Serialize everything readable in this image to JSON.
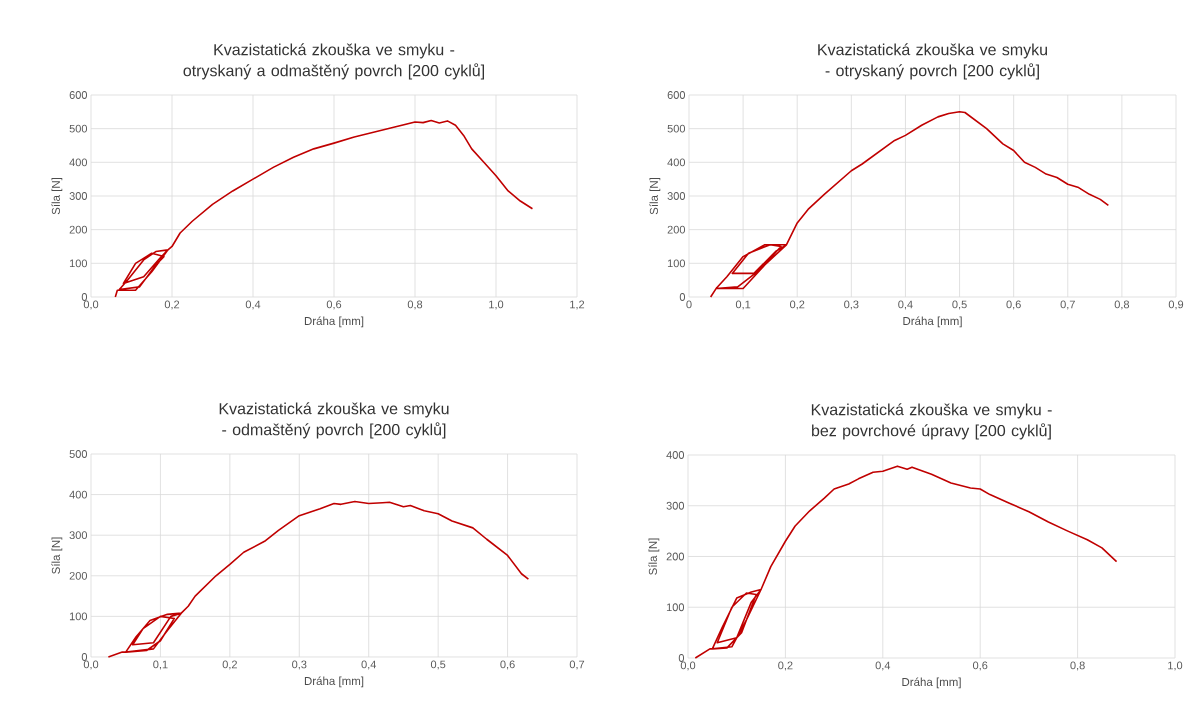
{
  "chart_data": [
    {
      "type": "line",
      "title": "Kvazistatická zkouška ve smyku - otryskaný a odmaštěný povrch [200 cyklů]",
      "xlabel": "Dráha [mm]",
      "ylabel": "Síla [N]",
      "xlim": [
        0,
        1.2
      ],
      "xticks": [
        {
          "value": 0,
          "label": "0,0"
        },
        {
          "value": 0.2,
          "label": "0,2"
        },
        {
          "value": 0.4,
          "label": "0,4"
        },
        {
          "value": 0.6,
          "label": "0,6"
        },
        {
          "value": 0.8,
          "label": "0,8"
        },
        {
          "value": 1.0,
          "label": "1,0"
        },
        {
          "value": 1.2,
          "label": "1,2"
        }
      ],
      "ylim": [
        0,
        600
      ],
      "yticks": [
        0,
        100,
        200,
        300,
        400,
        500,
        600
      ],
      "grid": true,
      "series": [
        {
          "color": "#c00000",
          "x": [
            0.06,
            0.065,
            0.07,
            0.11,
            0.15,
            0.19,
            0.16,
            0.13,
            0.09,
            0.07,
            0.12,
            0.16,
            0.18,
            0.15,
            0.11,
            0.08,
            0.13,
            0.17,
            0.19,
            0.2,
            0.22,
            0.25,
            0.3,
            0.35,
            0.4,
            0.45,
            0.5,
            0.55,
            0.6,
            0.65,
            0.7,
            0.75,
            0.8,
            0.82,
            0.84,
            0.86,
            0.88,
            0.9,
            0.92,
            0.94,
            0.97,
            1.0,
            1.03,
            1.06,
            1.09
          ],
          "values": [
            0,
            20,
            20,
            20,
            75,
            140,
            135,
            110,
            50,
            22,
            30,
            95,
            120,
            130,
            100,
            40,
            60,
            115,
            140,
            150,
            190,
            225,
            275,
            315,
            350,
            385,
            415,
            440,
            457,
            475,
            490,
            505,
            520,
            518,
            524,
            517,
            523,
            510,
            480,
            440,
            400,
            360,
            315,
            285,
            262
          ]
        }
      ]
    },
    {
      "type": "line",
      "title": "Kvazistatická zkouška ve smyku - otryskaný povrch [200 cyklů]",
      "xlabel": "Dráha [mm]",
      "ylabel": "Síla [N]",
      "xlim": [
        0,
        0.9
      ],
      "xticks": [
        0,
        {
          "value": 0.1,
          "label": "0,1"
        },
        {
          "value": 0.2,
          "label": "0,2"
        },
        {
          "value": 0.3,
          "label": "0,3"
        },
        {
          "value": 0.4,
          "label": "0,4"
        },
        {
          "value": 0.5,
          "label": "0,5"
        },
        {
          "value": 0.6,
          "label": "0,6"
        },
        {
          "value": 0.7,
          "label": "0,7"
        },
        {
          "value": 0.8,
          "label": "0,8"
        },
        {
          "value": 0.9,
          "label": "0,9"
        }
      ],
      "ylim": [
        0,
        600
      ],
      "yticks": [
        0,
        100,
        200,
        300,
        400,
        500,
        600
      ],
      "grid": true,
      "series": [
        {
          "color": "#c00000",
          "x": [
            0.04,
            0.05,
            0.1,
            0.14,
            0.18,
            0.14,
            0.1,
            0.07,
            0.05,
            0.09,
            0.13,
            0.17,
            0.15,
            0.11,
            0.08,
            0.12,
            0.16,
            0.18,
            0.2,
            0.22,
            0.25,
            0.3,
            0.32,
            0.35,
            0.38,
            0.4,
            0.43,
            0.46,
            0.48,
            0.5,
            0.51,
            0.55,
            0.58,
            0.6,
            0.62,
            0.64,
            0.66,
            0.68,
            0.7,
            0.72,
            0.74,
            0.76,
            0.775
          ],
          "values": [
            0,
            25,
            25,
            95,
            155,
            155,
            120,
            60,
            25,
            30,
            80,
            150,
            155,
            130,
            70,
            70,
            135,
            155,
            220,
            260,
            305,
            375,
            395,
            430,
            465,
            480,
            510,
            535,
            545,
            550,
            548,
            500,
            455,
            435,
            400,
            385,
            365,
            355,
            335,
            325,
            305,
            290,
            272
          ]
        }
      ]
    },
    {
      "type": "line",
      "title": "Kvazistatická zkouška ve smyku - odmaštěný povrch [200 cyklů]",
      "xlabel": "Dráha  [mm]",
      "ylabel": "Síla  [N]",
      "xlim": [
        0,
        0.7
      ],
      "xticks": [
        {
          "value": 0,
          "label": "0,0"
        },
        {
          "value": 0.1,
          "label": "0,1"
        },
        {
          "value": 0.2,
          "label": "0,2"
        },
        {
          "value": 0.3,
          "label": "0,3"
        },
        {
          "value": 0.4,
          "label": "0,4"
        },
        {
          "value": 0.5,
          "label": "0,5"
        },
        {
          "value": 0.6,
          "label": "0,6"
        },
        {
          "value": 0.7,
          "label": "0,7"
        }
      ],
      "ylim": [
        0,
        500
      ],
      "yticks": [
        0,
        100,
        200,
        300,
        400,
        500
      ],
      "grid": true,
      "series": [
        {
          "color": "#c00000",
          "x": [
            0.025,
            0.045,
            0.05,
            0.09,
            0.11,
            0.13,
            0.11,
            0.085,
            0.065,
            0.05,
            0.08,
            0.1,
            0.12,
            0.1,
            0.075,
            0.06,
            0.09,
            0.115,
            0.13,
            0.14,
            0.15,
            0.18,
            0.2,
            0.22,
            0.25,
            0.27,
            0.3,
            0.33,
            0.35,
            0.36,
            0.38,
            0.4,
            0.42,
            0.43,
            0.45,
            0.46,
            0.48,
            0.5,
            0.52,
            0.55,
            0.57,
            0.6,
            0.62,
            0.63
          ],
          "values": [
            0,
            12,
            12,
            20,
            65,
            108,
            105,
            90,
            50,
            12,
            16,
            40,
            95,
            100,
            70,
            30,
            35,
            100,
            108,
            125,
            150,
            200,
            228,
            258,
            285,
            312,
            348,
            365,
            378,
            376,
            383,
            378,
            380,
            381,
            370,
            373,
            360,
            353,
            335,
            318,
            290,
            250,
            205,
            192
          ]
        }
      ]
    },
    {
      "type": "line",
      "title": "Kvazistatická zkouška ve smyku - bez povrchové úpravy [200 cyklů]",
      "xlabel": "Dráha  [mm]",
      "ylabel": "Síla  [N]",
      "xlim": [
        0,
        1.0
      ],
      "xticks": [
        {
          "value": 0,
          "label": "0,0"
        },
        {
          "value": 0.2,
          "label": "0,2"
        },
        {
          "value": 0.4,
          "label": "0,4"
        },
        {
          "value": 0.6,
          "label": "0,6"
        },
        {
          "value": 0.8,
          "label": "0,8"
        },
        {
          "value": 1.0,
          "label": "1,0"
        }
      ],
      "ylim": [
        0,
        400
      ],
      "yticks": [
        0,
        100,
        200,
        300,
        400
      ],
      "grid": true,
      "series": [
        {
          "color": "#c00000",
          "x": [
            0.015,
            0.045,
            0.05,
            0.09,
            0.12,
            0.15,
            0.13,
            0.1,
            0.07,
            0.05,
            0.08,
            0.11,
            0.14,
            0.12,
            0.09,
            0.06,
            0.1,
            0.13,
            0.15,
            0.17,
            0.2,
            0.22,
            0.25,
            0.28,
            0.3,
            0.33,
            0.35,
            0.38,
            0.4,
            0.43,
            0.45,
            0.46,
            0.5,
            0.54,
            0.58,
            0.6,
            0.62,
            0.66,
            0.7,
            0.74,
            0.78,
            0.82,
            0.85,
            0.88
          ],
          "values": [
            0,
            18,
            18,
            22,
            75,
            135,
            130,
            118,
            60,
            18,
            20,
            50,
            125,
            128,
            100,
            30,
            40,
            110,
            135,
            180,
            230,
            260,
            290,
            315,
            333,
            343,
            353,
            366,
            368,
            378,
            372,
            376,
            362,
            345,
            335,
            333,
            322,
            305,
            288,
            268,
            250,
            233,
            217,
            190
          ]
        }
      ]
    }
  ]
}
